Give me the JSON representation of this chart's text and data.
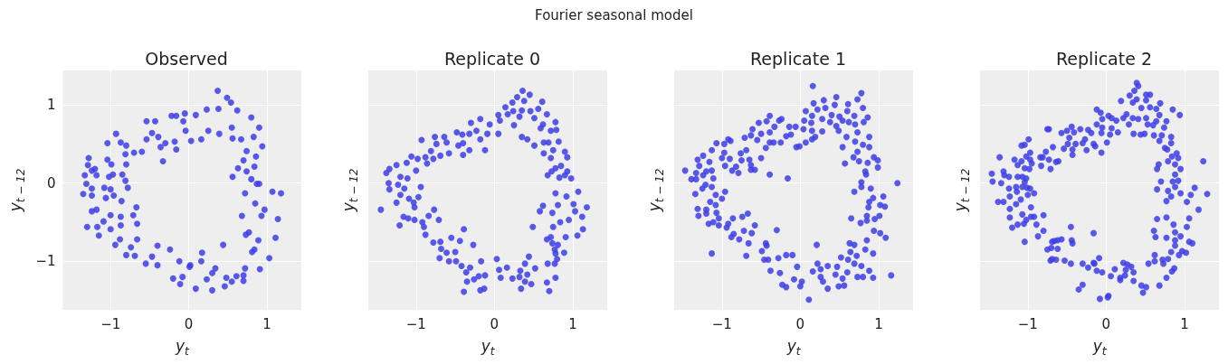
{
  "chart_data": [
    {
      "type": "scatter",
      "title": "Observed",
      "annotations": [
        "Fourier seasonal model"
      ],
      "xlabel": "y$_{t}$",
      "ylabel": "y$_{t − 12}$",
      "color": "#3d3de6",
      "marker": "circle",
      "grid": true,
      "xlim": [
        -1.61,
        1.44
      ],
      "ylim": [
        -1.62,
        1.44
      ],
      "xticks": [
        -1,
        0,
        1
      ],
      "yticks": [
        -1,
        0,
        1
      ],
      "x": [
        0.37,
        0.49,
        0.54,
        0.38,
        0.62,
        0.23,
        0.09,
        -0.05,
        -0.22,
        -0.16,
        -0.07,
        -0.04,
        0.03,
        0.16,
        0.25,
        0.39,
        0.55,
        0.8,
        0.9,
        0.83,
        0.94,
        0.74,
        0.86,
        0.7,
        0.84,
        0.56,
        0.8,
        0.9,
        0.72,
        1.07,
        1.18,
        0.85,
        0.97,
        0.68,
        1.14,
        0.73,
        1.11,
        0.89,
        0.81,
        1.03,
        0.91,
        0.72,
        0.7,
        0.55,
        0.61,
        0.44,
        0.3,
        0.46,
        0.34,
        0.17,
        0.23,
        0.09,
        0.16,
        0.01,
        -0.08,
        -0.2,
        -0.11,
        -0.12,
        -0.24,
        -0.4,
        -0.47,
        -0.4,
        -0.55,
        -0.69,
        -0.8,
        -0.66,
        -0.74,
        -0.94,
        -0.88,
        -1.15,
        -1.0,
        -1.3,
        -1.17,
        -0.87,
        -0.66,
        -0.71,
        -0.67,
        -0.87,
        -1.0,
        -1.09,
        -1.24,
        -1.18,
        -1.06,
        -0.96,
        -0.86,
        -1.35,
        -1.24,
        -1.31,
        -1.24,
        -1.08,
        -1.0,
        -0.78,
        -0.81,
        -1.33,
        -1.18,
        -1.24,
        -1.29,
        -1.28,
        -1.2,
        -1.02,
        -0.97,
        -0.85,
        -0.8,
        -0.99,
        -1.04,
        -1.04,
        -0.93,
        -0.87,
        -0.8,
        -0.7,
        -0.81,
        -0.6,
        -0.54,
        -0.43,
        -0.47,
        -0.39,
        -0.3,
        -0.54,
        -0.36,
        -0.16,
        -0.33,
        -0.18,
        0.56,
        0.67,
        0.63,
        0.74,
        0.87,
        0.93,
        0.77,
        0.84,
        0.7,
        0.3,
        0.48,
        0.02
      ],
      "values": [
        1.18,
        1.09,
        1.03,
        0.95,
        0.93,
        0.94,
        0.87,
        0.89,
        0.86,
        0.86,
        0.79,
        0.67,
        0.54,
        0.56,
        0.67,
        0.63,
        0.71,
        0.84,
        0.71,
        0.59,
        0.47,
        0.41,
        0.34,
        0.29,
        0.21,
        0.08,
        0.05,
        -0.01,
        -0.13,
        -0.11,
        -0.13,
        -0.26,
        -0.34,
        -0.42,
        -0.46,
        -0.66,
        -0.7,
        -0.73,
        -0.88,
        -0.96,
        -1.1,
        -1.09,
        -1.25,
        -1.26,
        -1.19,
        -0.79,
        -1.37,
        -1.32,
        -1.09,
        -0.89,
        -1.23,
        -1.35,
        -1.0,
        -1.07,
        -1.2,
        -1.22,
        -1.29,
        -1.0,
        -0.85,
        -0.8,
        -0.94,
        -1.05,
        -1.03,
        -0.93,
        -0.92,
        -0.72,
        -0.82,
        -0.79,
        -0.72,
        -0.67,
        -0.59,
        -0.56,
        -0.56,
        -0.54,
        -0.52,
        -0.41,
        -0.31,
        -0.43,
        -0.41,
        -0.49,
        -0.36,
        -0.34,
        -0.19,
        -0.16,
        -0.23,
        -0.14,
        -0.16,
        -0.01,
        -0.07,
        -0.06,
        -0.08,
        -0.06,
        0.03,
        0.1,
        0.1,
        0.16,
        0.23,
        0.32,
        0.18,
        0.08,
        0.11,
        0.11,
        0.24,
        0.24,
        0.3,
        0.51,
        0.63,
        0.52,
        0.48,
        0.39,
        0.37,
        0.4,
        0.79,
        0.79,
        0.64,
        0.59,
        0.51,
        0.56,
        0.46,
        0.43,
        0.28,
        0.53,
        0.57,
        0.56,
        0.19,
        0.15,
        -0.01,
        -0.42,
        -0.63,
        -0.85,
        -1.18,
        -1.15,
        -1.21,
        -1.05
      ]
    },
    {
      "type": "scatter",
      "title": "Replicate 0",
      "xlabel": "y$_{t}$",
      "ylabel": "y$_{t − 12}$",
      "color": "#3d3de6",
      "marker": "circle",
      "grid": true,
      "tick_labels": "x",
      "xlim": [
        -1.61,
        1.44
      ],
      "ylim": [
        -1.62,
        1.44
      ],
      "xticks": [
        -1,
        0,
        1
      ],
      "yticks": [
        -1,
        0,
        1
      ],
      "x": [
        0.36,
        0.45,
        0.29,
        0.23,
        0.38,
        0.61,
        0.56,
        0.14,
        0.24,
        0.05,
        0.17,
        0.35,
        0.46,
        0.67,
        0.32,
        0.51,
        0.78,
        0.62,
        0.72,
        0.79,
        0.59,
        0.25,
        0.07,
        -0.06,
        -0.18,
        -0.3,
        -0.23,
        -0.09,
        0.05,
        -0.18,
        -0.12,
        -0.32,
        -0.41,
        -0.48,
        -0.64,
        -0.76,
        -0.93,
        -0.74,
        -0.61,
        -0.46,
        -0.4,
        -0.58,
        -0.4,
        -0.32,
        -0.81,
        -0.69,
        -0.78,
        -0.88,
        -0.98,
        -1.06,
        -1.12,
        -1.25,
        -1.34,
        -1.38,
        -1.35,
        -1.2,
        -1.11,
        -1.0,
        -0.86,
        -0.94,
        -1.23,
        -1.34,
        -1.15,
        -1.2,
        -1.25,
        -1.09,
        -1.03,
        -0.97,
        -1.45,
        -1.02,
        -1.16,
        -1.21,
        -1.1,
        -1.02,
        -0.92,
        -0.9,
        -0.88,
        -0.77,
        -0.84,
        -0.71,
        -0.78,
        -0.69,
        -0.68,
        -0.7,
        -0.61,
        -0.58,
        -0.55,
        -0.44,
        -0.5,
        -0.39,
        -0.27,
        -0.49,
        -0.42,
        -0.36,
        -0.31,
        -0.26,
        -0.35,
        -0.39,
        -0.2,
        -0.12,
        -0.17,
        -0.18,
        -0.13,
        0.03,
        0.06,
        0.08,
        0.16,
        0.23,
        0.33,
        0.32,
        0.34,
        0.39,
        0.42,
        0.47,
        0.39,
        0.44,
        0.52,
        0.67,
        0.7,
        0.78,
        0.68,
        0.77,
        0.8,
        0.78,
        0.77,
        0.89,
        0.81,
        0.74,
        0.67,
        0.72,
        0.91,
        1.06,
        1.13,
        0.49,
        0.75,
        0.84,
        0.95,
        1.12,
        1.03,
        1.01,
        1.18,
        0.92,
        1.07,
        0.81,
        0.74,
        0.62,
        0.58,
        0.78,
        0.68,
        0.83,
        0.9,
        0.98,
        0.78,
        0.93,
        0.73,
        0.85,
        0.93,
        0.9,
        0.75,
        0.63,
        0.72,
        0.63,
        0.69,
        0.82,
        0.51,
        0.42,
        0.35
      ],
      "values": [
        1.18,
        1.13,
        1.1,
        1.03,
        1.05,
        1.04,
        0.95,
        0.97,
        0.92,
        0.87,
        0.88,
        0.93,
        0.92,
        0.88,
        0.85,
        0.83,
        0.78,
        0.75,
        0.67,
        0.68,
        0.7,
        0.74,
        0.8,
        0.75,
        0.82,
        0.77,
        0.67,
        0.63,
        0.63,
        0.56,
        0.42,
        0.63,
        0.62,
        0.65,
        0.59,
        0.59,
        0.55,
        0.5,
        0.52,
        0.48,
        0.51,
        0.38,
        0.36,
        0.42,
        0.41,
        0.35,
        0.31,
        0.33,
        0.31,
        0.34,
        0.26,
        0.23,
        0.18,
        0.13,
        0.0,
        0.08,
        0.06,
        0.16,
        0.25,
        -0.05,
        -0.02,
        -0.08,
        -0.07,
        -0.15,
        -0.25,
        -0.2,
        -0.25,
        -0.18,
        -0.34,
        -0.31,
        -0.43,
        -0.54,
        -0.45,
        -0.47,
        -0.5,
        -0.56,
        -0.66,
        -0.34,
        -0.42,
        -0.47,
        -0.76,
        -0.75,
        -0.84,
        -0.96,
        -0.89,
        -1.0,
        -0.7,
        -0.74,
        -0.88,
        -0.59,
        -0.79,
        -1.0,
        -1.06,
        -1.14,
        -1.08,
        -1.23,
        -1.26,
        -1.39,
        -1.19,
        -1.18,
        -1.0,
        -1.37,
        -1.35,
        -0.97,
        -1.11,
        -1.21,
        -1.08,
        -1.22,
        -1.12,
        -1.2,
        -1.35,
        -1.26,
        -1.17,
        -1.29,
        -1.03,
        -0.94,
        -1.09,
        -1.27,
        -1.38,
        -1.21,
        -1.03,
        -1.03,
        -0.97,
        -0.9,
        -0.85,
        -0.89,
        -0.79,
        -0.77,
        -0.72,
        -0.69,
        -0.69,
        -0.67,
        -0.59,
        -0.56,
        -0.56,
        -0.5,
        -0.47,
        -0.43,
        -0.36,
        -0.27,
        -0.31,
        -0.17,
        -0.11,
        -0.28,
        -0.38,
        -0.29,
        -0.36,
        -0.13,
        0.1,
        0.07,
        0.1,
        0.06,
        0.19,
        0.15,
        0.15,
        0.22,
        0.33,
        0.4,
        0.42,
        0.38,
        0.32,
        0.52,
        0.52,
        0.53,
        0.48,
        0.56,
        0.59
      ]
    },
    {
      "type": "scatter",
      "title": "Replicate 1",
      "xlabel": "y$_{t}$",
      "ylabel": "y$_{t − 12}$",
      "color": "#3d3de6",
      "marker": "circle",
      "grid": true,
      "tick_labels": "x",
      "xlim": [
        -1.61,
        1.44
      ],
      "ylim": [
        -1.62,
        1.44
      ],
      "xticks": [
        -1,
        0,
        1
      ],
      "yticks": [
        -1,
        0,
        1
      ],
      "x": [
        0.16,
        0.46,
        0.78,
        0.73,
        0.8,
        0.61,
        0.44,
        0.3,
        0.17,
        0.07,
        0.22,
        0.32,
        0.4,
        0.5,
        0.6,
        0.69,
        0.86,
        0.81,
        0.7,
        0.62,
        0.54,
        0.46,
        0.38,
        0.28,
        0.15,
        0.05,
        0.14,
        0.04,
        0.15,
        0.28,
        0.19,
        0.15,
        0.07,
        0.49,
        0.59,
        0.73,
        0.88,
        0.7,
        0.8,
        0.88,
        0.54,
        0.73,
        0.68,
        0.75,
        0.57,
        0.86,
        0.94,
        0.99,
        0.99,
        0.83,
        0.84,
        0.78,
        0.78,
        0.9,
        0.69,
        1.24,
        1.06,
        0.93,
        0.88,
        0.87,
        1.02,
        1.08,
        1.01,
        0.85,
        0.85,
        0.95,
        0.77,
        0.65,
        0.94,
        1.02,
        1.09,
        0.85,
        0.63,
        0.69,
        0.83,
        0.93,
        0.64,
        0.72,
        0.61,
        0.52,
        0.69,
        0.78,
        0.88,
        0.73,
        0.8,
        0.93,
        1.16,
        0.6,
        0.47,
        0.45,
        0.54,
        0.49,
        0.56,
        0.35,
        0.26,
        0.22,
        0.26,
        0.29,
        0.35,
        0.16,
        0.21,
        0.11,
        0.02,
        0.0,
        -0.04,
        -0.08,
        -0.1,
        -0.18,
        -0.18,
        -0.23,
        -0.26,
        -0.28,
        -0.3,
        -0.38,
        -0.41,
        -0.46,
        -0.49,
        -0.43,
        -0.44,
        -0.69,
        -1.13,
        -0.66,
        -0.78,
        -0.88,
        -0.85,
        -0.72,
        -0.62,
        -0.58,
        -0.94,
        -1.04,
        -1.17,
        -1.11,
        -0.92,
        -0.86,
        -0.74,
        -0.67,
        -1.04,
        -1.07,
        -1.2,
        -1.3,
        -1.31,
        -1.2,
        -1.15,
        -1.08,
        -1.0,
        -0.96,
        -1.08,
        -1.34,
        -1.25,
        -1.13,
        -1.21,
        -1.39,
        -1.33,
        -1.11,
        -1.24,
        -1.2,
        -1.13,
        -1.47,
        -1.33,
        -1.29,
        -1.16,
        -1.31,
        -1.24,
        -1.0,
        -0.9,
        -0.97,
        -0.96,
        -0.82,
        -0.79,
        -0.87,
        -0.75,
        -0.65,
        -0.69,
        -0.76,
        -0.63,
        -0.58,
        -0.63,
        -0.5,
        -0.39,
        -0.16,
        -1.13,
        -1.07,
        -0.97,
        -0.89,
        -0.92,
        -0.71,
        -0.63,
        -0.61,
        -0.53,
        -0.55,
        -0.5,
        -0.43,
        -0.39,
        -0.33,
        -0.39,
        -0.44,
        -0.39,
        -0.34,
        -0.25,
        -0.27,
        -0.24,
        -0.18,
        -0.12,
        -0.14,
        -0.06,
        -0.05,
        -0.01
      ],
      "values": [
        1.24,
        1.1,
        1.15,
        1.07,
        0.96,
        1.01,
        1.0,
        1.06,
        1.02,
        0.92,
        0.94,
        0.96,
        0.87,
        0.85,
        0.92,
        0.86,
        0.84,
        0.78,
        0.75,
        0.78,
        0.8,
        0.73,
        0.78,
        0.82,
        0.86,
        0.8,
        0.77,
        0.69,
        0.67,
        0.66,
        0.59,
        0.56,
        0.52,
        0.67,
        0.59,
        0.65,
        0.59,
        0.53,
        0.49,
        0.46,
        0.46,
        0.4,
        0.33,
        0.28,
        0.25,
        0.26,
        0.33,
        0.29,
        0.2,
        0.15,
        0.11,
        0.01,
        -0.05,
        -0.07,
        -0.11,
        0.0,
        -0.17,
        -0.19,
        -0.24,
        -0.31,
        -0.28,
        -0.3,
        -0.42,
        -0.42,
        -0.48,
        -0.46,
        -0.51,
        -0.45,
        -0.61,
        -0.64,
        -0.7,
        -0.73,
        -0.77,
        -0.79,
        -0.85,
        -0.9,
        -0.88,
        -0.93,
        -0.98,
        -0.95,
        -1.03,
        -1.06,
        -1.12,
        -1.2,
        -1.2,
        -1.21,
        -1.18,
        -1.14,
        -1.07,
        -1.17,
        -1.22,
        -1.32,
        -1.31,
        -1.06,
        -1.1,
        -1.03,
        -1.2,
        -1.26,
        -1.35,
        -1.13,
        -0.79,
        -1.49,
        -1.26,
        -1.32,
        -1.07,
        -1.23,
        -0.92,
        -0.92,
        -1.33,
        -1.3,
        -1.15,
        -0.96,
        -0.6,
        -1.12,
        -0.98,
        -0.98,
        -0.87,
        -0.8,
        -0.77,
        -0.93,
        -0.9,
        -0.77,
        -0.72,
        -0.69,
        -0.65,
        -0.61,
        -0.64,
        -0.54,
        -0.57,
        -0.54,
        -0.52,
        -0.5,
        -0.52,
        -0.45,
        -0.43,
        -0.39,
        -0.45,
        -0.38,
        -0.39,
        -0.42,
        -0.33,
        -0.34,
        -0.24,
        -0.28,
        -0.2,
        -0.11,
        -0.15,
        -0.14,
        -0.07,
        -0.05,
        -0.02,
        0.05,
        0.05,
        0.06,
        0.1,
        0.15,
        0.16,
        0.16,
        0.13,
        0.22,
        0.27,
        0.3,
        0.35,
        0.32,
        0.31,
        0.39,
        0.22,
        0.21,
        0.13,
        0.16,
        0.29,
        0.3,
        0.42,
        0.38,
        0.17,
        0.17,
        0.23,
        0.32,
        0.11,
        0.06,
        0.42,
        0.51,
        0.5,
        0.54,
        0.56,
        0.58,
        0.61,
        0.69,
        0.77,
        0.55,
        0.63,
        0.79,
        0.86,
        0.72,
        0.65,
        0.45,
        0.52,
        0.52,
        0.52,
        0.8,
        0.82,
        0.6,
        0.62,
        0.72,
        0.72,
        0.46,
        0.47
      ]
    },
    {
      "type": "scatter",
      "title": "Replicate 2",
      "xlabel": "y$_{t}$",
      "ylabel": "y$_{t − 12}$",
      "color": "#3d3de6",
      "marker": "circle",
      "grid": true,
      "tick_labels": "x",
      "xlim": [
        -1.61,
        1.44
      ],
      "ylim": [
        -1.62,
        1.44
      ],
      "xticks": [
        -1,
        0,
        1
      ],
      "yticks": [
        -1,
        0,
        1
      ],
      "x": [
        0.39,
        0.41,
        0.36,
        0.3,
        0.19,
        0.34,
        0.39,
        0.51,
        0.56,
        0.51,
        0.69,
        0.45,
        0.56,
        0.64,
        0.68,
        0.85,
        0.94,
        0.64,
        0.77,
        0.6,
        0.53,
        0.51,
        0.41,
        0.34,
        0.26,
        0.22,
        0.29,
        0.13,
        0.07,
        0.03,
        -0.12,
        -0.07,
        -0.05,
        -0.12,
        -0.05,
        0.07,
        0.15,
        0.05,
        -0.06,
        0.01,
        0.35,
        0.44,
        0.49,
        0.61,
        0.71,
        0.74,
        0.83,
        0.68,
        0.83,
        0.75,
        0.78,
        0.9,
        0.84,
        0.92,
        0.79,
        0.88,
        0.95,
        1.24,
        0.67,
        0.65,
        0.88,
        0.7,
        0.85,
        0.92,
        0.88,
        1.13,
        0.65,
        0.79,
        0.95,
        1.08,
        1.29,
        0.83,
        0.77,
        1.03,
        1.18,
        1.06,
        0.77,
        0.65,
        0.86,
        1.03,
        0.88,
        0.95,
        0.88,
        0.88,
        1.06,
        1.1,
        0.61,
        0.63,
        0.77,
        0.83,
        0.97,
        1.02,
        0.93,
        0.79,
        0.72,
        0.62,
        0.62,
        0.73,
        0.54,
        0.87,
        0.84,
        0.77,
        0.68,
        0.51,
        0.45,
        0.47,
        0.35,
        0.35,
        0.32,
        0.27,
        0.22,
        0.25,
        0.24,
        0.18,
        0.18,
        0.11,
        0.06,
        0.03,
        0.02,
        -0.08,
        -0.05,
        -0.12,
        -0.09,
        -0.16,
        -0.15,
        -0.23,
        -0.3,
        -0.3,
        -0.35,
        -0.16,
        -0.45,
        -0.44,
        -0.43,
        -0.45,
        -0.53,
        -0.64,
        -0.71,
        -0.69,
        -0.75,
        -0.7,
        -0.62,
        -0.69,
        -0.66,
        -0.57,
        -0.62,
        -0.87,
        -0.8,
        -1.04,
        -1.2,
        -1.13,
        -1.05,
        -1.02,
        -0.96,
        -0.92,
        -0.89,
        -0.8,
        -1.07,
        -1.23,
        -1.23,
        -1.15,
        -1.09,
        -0.96,
        -1.0,
        -0.92,
        -1.38,
        -1.31,
        -1.23,
        -1.14,
        -1.24,
        -1.15,
        -1.07,
        -1.01,
        -0.97,
        -1.04,
        -1.46,
        -1.45,
        -1.34,
        -1.3,
        -1.24,
        -1.13,
        -1.07,
        -1.02,
        -1.31,
        -1.36,
        -1.17,
        -1.13,
        -1.04,
        -0.98,
        -1.08,
        -0.95,
        -0.97,
        -1.02,
        -0.97,
        -0.83,
        -0.71,
        -0.84,
        -0.81,
        -0.73,
        -0.64,
        -0.61,
        -0.68,
        -0.77,
        -1.08,
        -1.04,
        -0.99,
        -0.75,
        -0.73,
        -0.57,
        -0.5,
        -0.44,
        -0.41,
        -0.47,
        -0.49,
        -0.54,
        -0.43,
        -0.43,
        -0.39,
        -0.33,
        -0.23,
        -0.19,
        -0.27,
        -0.3,
        -0.25,
        -0.16,
        -0.14,
        -0.06
      ],
      "values": [
        1.28,
        1.24,
        1.18,
        1.12,
        1.05,
        1.03,
        1.07,
        1.13,
        1.13,
        1.06,
        1.02,
        0.96,
        0.97,
        0.95,
        0.87,
        0.94,
        0.87,
        0.79,
        0.79,
        0.74,
        0.75,
        0.83,
        0.82,
        0.83,
        0.88,
        0.83,
        0.75,
        0.8,
        0.83,
        0.86,
        0.94,
        0.9,
        0.82,
        0.75,
        0.71,
        0.7,
        0.65,
        0.62,
        0.64,
        0.52,
        0.63,
        0.62,
        0.63,
        0.61,
        0.61,
        0.71,
        0.59,
        0.54,
        0.51,
        0.45,
        0.43,
        0.38,
        0.34,
        0.32,
        0.28,
        0.24,
        0.18,
        0.28,
        0.24,
        0.18,
        0.11,
        0.02,
        0.02,
        0.03,
        -0.05,
        -0.06,
        -0.08,
        -0.1,
        -0.13,
        -0.15,
        -0.14,
        -0.17,
        -0.23,
        -0.24,
        -0.34,
        -0.45,
        -0.44,
        -0.46,
        -0.53,
        -0.56,
        -0.63,
        -0.68,
        -0.73,
        -0.8,
        -0.75,
        -0.77,
        -0.61,
        -0.69,
        -0.7,
        -0.88,
        -0.87,
        -0.89,
        -0.92,
        -0.97,
        -0.98,
        -0.92,
        -1.0,
        -1.03,
        -1.03,
        -1.09,
        -1.13,
        -1.21,
        -1.31,
        -1.33,
        -1.31,
        -1.4,
        -1.25,
        -1.14,
        -1.07,
        -1.04,
        -1.02,
        -1.11,
        -1.18,
        -1.21,
        -1.24,
        -1.1,
        -1.19,
        -1.44,
        -1.46,
        -1.48,
        -1.14,
        -1.12,
        -0.96,
        -1.02,
        -1.03,
        -1.08,
        -1.03,
        -1.3,
        -1.36,
        -0.64,
        -0.56,
        -0.73,
        -0.77,
        -1.03,
        -0.99,
        -0.98,
        -0.99,
        -0.97,
        -0.85,
        -0.83,
        -0.84,
        -0.75,
        -0.74,
        -0.72,
        -0.73,
        -0.68,
        -0.61,
        -0.75,
        -0.57,
        -0.53,
        -0.52,
        -0.47,
        -0.43,
        -0.43,
        -0.53,
        -0.41,
        -0.4,
        -0.44,
        -0.33,
        -0.27,
        -0.21,
        -0.31,
        -0.15,
        -0.13,
        -0.24,
        -0.24,
        -0.17,
        -0.11,
        -0.07,
        -0.05,
        -0.05,
        -0.06,
        -0.07,
        0.01,
        0.12,
        0.02,
        0.0,
        0.1,
        0.08,
        0.08,
        0.08,
        0.06,
        0.15,
        0.33,
        0.3,
        0.23,
        0.19,
        0.18,
        0.28,
        0.25,
        0.3,
        0.34,
        0.39,
        0.22,
        0.18,
        0.33,
        0.33,
        0.3,
        0.27,
        0.28,
        0.46,
        0.4,
        0.48,
        0.49,
        0.56,
        0.69,
        0.69,
        0.64,
        0.67,
        0.72,
        0.65,
        0.58,
        0.5,
        0.44,
        0.36,
        0.43,
        0.5,
        0.69,
        0.68,
        0.64,
        0.56,
        0.51,
        0.42,
        0.5,
        0.47,
        0.39
      ]
    }
  ]
}
